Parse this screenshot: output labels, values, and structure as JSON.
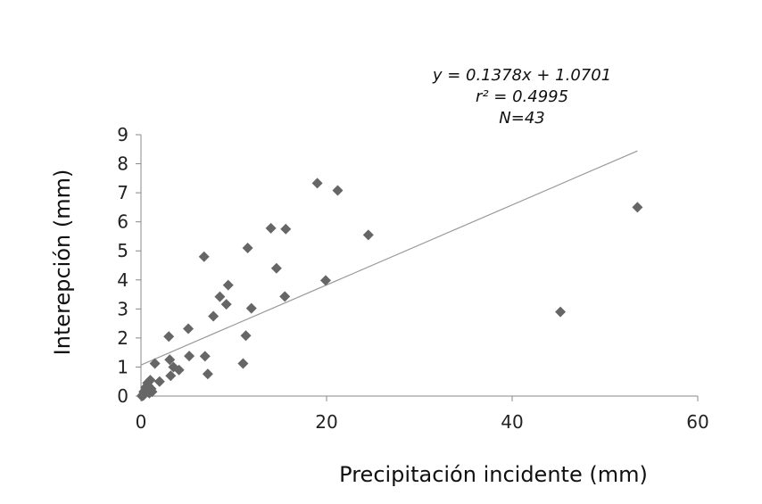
{
  "chart_data": {
    "type": "scatter",
    "title": "",
    "xlabel": "Precipitación incidente  (mm)",
    "ylabel": "Interepción (mm)",
    "xlim": [
      0,
      60
    ],
    "ylim": [
      0,
      9
    ],
    "xticks": [
      0,
      20,
      40,
      60
    ],
    "yticks": [
      0,
      1,
      2,
      3,
      4,
      5,
      6,
      7,
      8,
      9
    ],
    "grid": false,
    "marker_color": "#666666",
    "trendline_color": "#999999",
    "annotation": {
      "equation": "y = 0.1378x + 1.0701",
      "r2": "r² = 0.4995",
      "n": "N=43"
    },
    "trendline": {
      "slope": 0.1378,
      "intercept": 1.0701,
      "x_range": [
        0,
        53.5
      ]
    },
    "series": [
      {
        "name": "Interepción",
        "points": [
          [
            0.2,
            0.05
          ],
          [
            0.3,
            0.15
          ],
          [
            0.4,
            0.1
          ],
          [
            0.5,
            0.3
          ],
          [
            0.6,
            0.2
          ],
          [
            0.7,
            0.45
          ],
          [
            0.8,
            0.35
          ],
          [
            0.9,
            0.1
          ],
          [
            1.0,
            0.55
          ],
          [
            1.1,
            0.25
          ],
          [
            1.5,
            1.12
          ],
          [
            2.0,
            0.5
          ],
          [
            3.0,
            2.05
          ],
          [
            3.1,
            1.25
          ],
          [
            3.2,
            0.7
          ],
          [
            3.5,
            1.0
          ],
          [
            4.1,
            0.9
          ],
          [
            5.1,
            2.32
          ],
          [
            5.2,
            1.38
          ],
          [
            6.8,
            4.8
          ],
          [
            6.9,
            1.37
          ],
          [
            7.2,
            0.76
          ],
          [
            7.8,
            2.75
          ],
          [
            8.5,
            3.42
          ],
          [
            9.2,
            3.16
          ],
          [
            9.4,
            3.82
          ],
          [
            11.0,
            1.12
          ],
          [
            11.3,
            2.08
          ],
          [
            11.5,
            5.1
          ],
          [
            11.9,
            3.02
          ],
          [
            14.0,
            5.78
          ],
          [
            14.6,
            4.4
          ],
          [
            15.5,
            3.43
          ],
          [
            15.6,
            5.75
          ],
          [
            19.0,
            7.33
          ],
          [
            19.9,
            3.98
          ],
          [
            21.2,
            7.08
          ],
          [
            24.5,
            5.55
          ],
          [
            45.2,
            2.9
          ],
          [
            53.5,
            6.5
          ],
          [
            0.1,
            0.0
          ],
          [
            0.25,
            0.02
          ],
          [
            1.2,
            0.15
          ]
        ]
      }
    ]
  }
}
